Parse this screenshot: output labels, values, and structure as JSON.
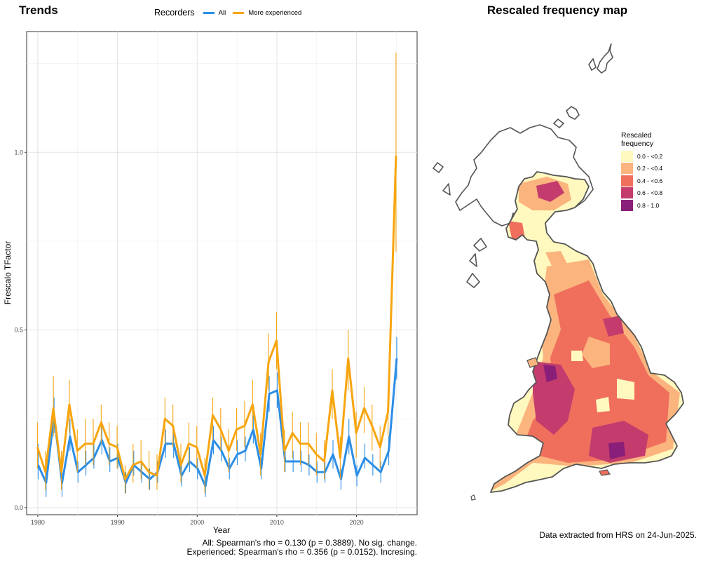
{
  "left_title": "Trends",
  "right_title": "Rescaled frequency map",
  "stats": {
    "all": "All: Spearman's rho = 0.130 (p = 0.3889). No sig. change.",
    "experienced": "Experienced: Spearman's rho = 0.356 (p = 0.0152). Incresing."
  },
  "extract_note": "Data extracted from HRS on 24-Jun-2025.",
  "map_legend": {
    "title_line1": "Rescaled",
    "title_line2": "frequency",
    "items": [
      {
        "label": "0.0 - <0.2",
        "color": "#fff8bf"
      },
      {
        "label": "0.2 - <0.4",
        "color": "#fbb47e"
      },
      {
        "label": "0.4 - <0.6",
        "color": "#ef6f5c"
      },
      {
        "label": "0.6 - <0.8",
        "color": "#c33c6d"
      },
      {
        "label": "0.8 - 1.0",
        "color": "#8a1f7a"
      }
    ]
  },
  "chart_data": {
    "type": "line",
    "title": "Trends",
    "xlabel": "Year",
    "ylabel": "Frescalo TFactor",
    "xlim": [
      1978.6,
      2027.6
    ],
    "ylim": [
      -0.02,
      1.34
    ],
    "x_ticks": [
      1980,
      1990,
      2000,
      2010,
      2020
    ],
    "y_ticks": [
      0.0,
      0.5,
      1.0
    ],
    "y_tick_labels": [
      "0.0",
      "0.5",
      "1.0"
    ],
    "grid": true,
    "legend": {
      "title": "Recorders",
      "position": "top"
    },
    "x": [
      1980,
      1981,
      1982,
      1983,
      1984,
      1985,
      1986,
      1987,
      1988,
      1989,
      1990,
      1991,
      1992,
      1993,
      1994,
      1995,
      1996,
      1997,
      1998,
      1999,
      2000,
      2001,
      2002,
      2003,
      2004,
      2005,
      2006,
      2007,
      2008,
      2009,
      2010,
      2011,
      2012,
      2013,
      2014,
      2015,
      2016,
      2017,
      2018,
      2019,
      2020,
      2021,
      2022,
      2023,
      2024,
      2025
    ],
    "series": [
      {
        "name": "All",
        "color": "#2c8ee6",
        "values": [
          0.12,
          0.07,
          0.26,
          0.07,
          0.2,
          0.1,
          0.12,
          0.14,
          0.19,
          0.13,
          0.14,
          0.07,
          0.12,
          0.1,
          0.08,
          0.1,
          0.18,
          0.18,
          0.09,
          0.13,
          0.11,
          0.06,
          0.19,
          0.16,
          0.11,
          0.15,
          0.16,
          0.22,
          0.11,
          0.32,
          0.33,
          0.13,
          0.13,
          0.13,
          0.12,
          0.1,
          0.1,
          0.15,
          0.08,
          0.2,
          0.09,
          0.14,
          0.12,
          0.1,
          0.16,
          0.42
        ],
        "lower": [
          0.08,
          0.03,
          0.21,
          0.03,
          0.16,
          0.07,
          0.09,
          0.11,
          0.15,
          0.1,
          0.11,
          0.04,
          0.09,
          0.07,
          0.05,
          0.07,
          0.14,
          0.14,
          0.06,
          0.1,
          0.08,
          0.03,
          0.15,
          0.13,
          0.08,
          0.12,
          0.13,
          0.18,
          0.08,
          0.27,
          0.28,
          0.1,
          0.1,
          0.1,
          0.09,
          0.07,
          0.07,
          0.11,
          0.05,
          0.15,
          0.06,
          0.11,
          0.09,
          0.07,
          0.12,
          0.36
        ],
        "upper": [
          0.18,
          0.11,
          0.31,
          0.12,
          0.25,
          0.13,
          0.16,
          0.18,
          0.24,
          0.17,
          0.18,
          0.1,
          0.16,
          0.13,
          0.11,
          0.13,
          0.22,
          0.22,
          0.12,
          0.17,
          0.14,
          0.09,
          0.23,
          0.2,
          0.14,
          0.19,
          0.2,
          0.26,
          0.14,
          0.37,
          0.38,
          0.16,
          0.16,
          0.16,
          0.15,
          0.13,
          0.13,
          0.19,
          0.11,
          0.25,
          0.12,
          0.18,
          0.15,
          0.13,
          0.2,
          0.48
        ]
      },
      {
        "name": "More experienced",
        "color": "#f7a50f",
        "values": [
          0.17,
          0.1,
          0.28,
          0.1,
          0.29,
          0.16,
          0.18,
          0.18,
          0.24,
          0.18,
          0.17,
          0.08,
          0.12,
          0.13,
          0.1,
          0.09,
          0.25,
          0.23,
          0.12,
          0.18,
          0.17,
          0.09,
          0.26,
          0.22,
          0.16,
          0.22,
          0.23,
          0.29,
          0.15,
          0.41,
          0.47,
          0.16,
          0.21,
          0.18,
          0.18,
          0.15,
          0.13,
          0.33,
          0.14,
          0.42,
          0.21,
          0.28,
          0.23,
          0.17,
          0.27,
          0.99
        ],
        "lower": [
          0.11,
          0.05,
          0.2,
          0.05,
          0.21,
          0.1,
          0.12,
          0.12,
          0.18,
          0.12,
          0.11,
          0.04,
          0.07,
          0.08,
          0.05,
          0.05,
          0.18,
          0.17,
          0.07,
          0.12,
          0.11,
          0.04,
          0.19,
          0.16,
          0.1,
          0.16,
          0.17,
          0.22,
          0.09,
          0.33,
          0.39,
          0.1,
          0.14,
          0.12,
          0.12,
          0.09,
          0.08,
          0.25,
          0.08,
          0.33,
          0.14,
          0.21,
          0.16,
          0.11,
          0.2,
          0.72
        ],
        "upper": [
          0.24,
          0.16,
          0.37,
          0.16,
          0.36,
          0.22,
          0.25,
          0.25,
          0.29,
          0.24,
          0.23,
          0.12,
          0.18,
          0.19,
          0.16,
          0.15,
          0.31,
          0.29,
          0.18,
          0.24,
          0.23,
          0.14,
          0.31,
          0.28,
          0.22,
          0.28,
          0.3,
          0.36,
          0.21,
          0.49,
          0.55,
          0.22,
          0.27,
          0.24,
          0.24,
          0.21,
          0.19,
          0.39,
          0.2,
          0.5,
          0.27,
          0.34,
          0.29,
          0.23,
          0.34,
          1.28
        ]
      }
    ]
  }
}
